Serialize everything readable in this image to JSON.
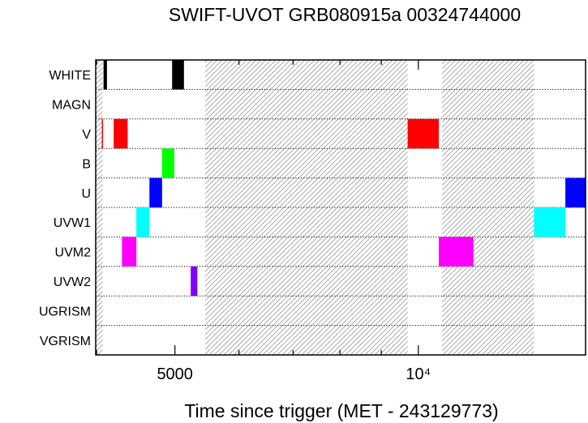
{
  "chart_data": {
    "type": "bar",
    "subtype": "observation-timeline",
    "title": "SWIFT-UVOT GRB080915a 00324744000",
    "xlabel": "Time since trigger (MET - 243129773)",
    "ylabel": "",
    "x_scale": "log",
    "xlim": [
      3990,
      16100
    ],
    "x_ticks": [
      {
        "value": 5000,
        "label": "5000"
      },
      {
        "value": 10000,
        "label": "10⁴"
      }
    ],
    "x_minor_ticks": [
      4000,
      6000,
      7000,
      8000,
      9000
    ],
    "categories": [
      "WHITE",
      "MAGN",
      "V",
      "B",
      "U",
      "UVW1",
      "UVM2",
      "UVW2",
      "UGRISM",
      "VGRISM"
    ],
    "grid": "dotted horizontal row separators",
    "hatched_intervals": [
      [
        3990,
        4070
      ],
      [
        5450,
        9700
      ],
      [
        10700,
        13900
      ]
    ],
    "exposures": [
      {
        "filter": "WHITE",
        "start": 4080,
        "end": 4120,
        "color": "#000000"
      },
      {
        "filter": "WHITE",
        "start": 4960,
        "end": 5130,
        "color": "#000000"
      },
      {
        "filter": "V",
        "start": 4060,
        "end": 4072,
        "color": "#ff0000"
      },
      {
        "filter": "V",
        "start": 4200,
        "end": 4370,
        "color": "#ff0000"
      },
      {
        "filter": "V",
        "start": 9700,
        "end": 10600,
        "color": "#ff0000"
      },
      {
        "filter": "B",
        "start": 4820,
        "end": 4990,
        "color": "#00ff00"
      },
      {
        "filter": "U",
        "start": 4650,
        "end": 4820,
        "color": "#0000ff"
      },
      {
        "filter": "U",
        "start": 15200,
        "end": 16100,
        "color": "#0000ff"
      },
      {
        "filter": "UVW1",
        "start": 4480,
        "end": 4650,
        "color": "#00ffff"
      },
      {
        "filter": "UVW1",
        "start": 13900,
        "end": 15200,
        "color": "#00ffff"
      },
      {
        "filter": "UVM2",
        "start": 4300,
        "end": 4480,
        "color": "#ff00ff"
      },
      {
        "filter": "UVM2",
        "start": 10600,
        "end": 11700,
        "color": "#ff00ff"
      },
      {
        "filter": "UVW2",
        "start": 5230,
        "end": 5330,
        "color": "#7f00ff"
      }
    ],
    "colors": {
      "hatch": "#9a9a9a",
      "frame": "#000000",
      "grid": "#000000"
    }
  }
}
